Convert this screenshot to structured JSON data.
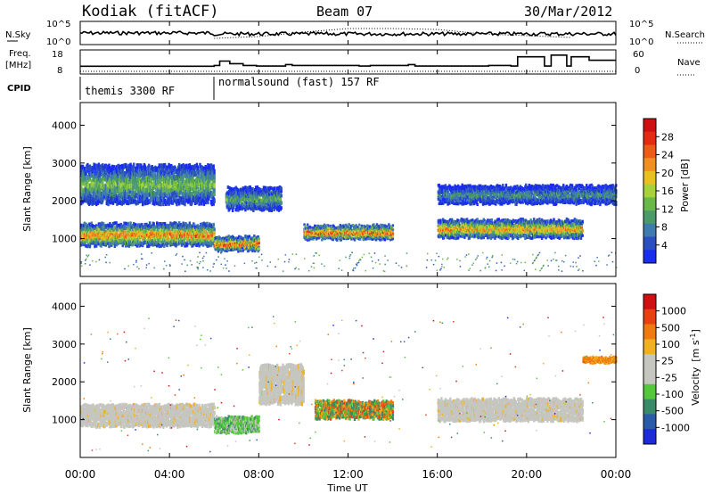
{
  "chart_data": {
    "type": "heatmap",
    "header": {
      "radar": "Kodiak (fitACF)",
      "beam": "Beam 07",
      "date": "30/Mar/2012"
    },
    "x": {
      "label": "Time UT",
      "range_hours": [
        0,
        24
      ],
      "tick_labels": [
        "00:00",
        "04:00",
        "08:00",
        "12:00",
        "16:00",
        "20:00",
        "00:00"
      ],
      "tick_hours": [
        0,
        4,
        8,
        12,
        16,
        20,
        24
      ]
    },
    "noise_panel": {
      "left_label": "N.Sky",
      "right_label": "N.Search",
      "left_ticks": [
        "10^5",
        "10^0"
      ],
      "right_ticks": [
        "10^5",
        "10^0"
      ],
      "search_trace_hours": [
        6,
        8,
        10,
        12,
        14,
        16,
        18,
        20,
        22
      ],
      "search_trace_level": [
        0.15,
        0.25,
        0.5,
        0.7,
        0.7,
        0.65,
        0.4,
        0.3,
        0.2
      ]
    },
    "freq_panel": {
      "left_label_1": "Freq.",
      "left_label_2": "[MHz]",
      "left_ticks": [
        "18",
        "8"
      ],
      "right_label": "Nave",
      "right_ticks": [
        "60",
        "0"
      ],
      "freq_steps_hours": [
        0,
        6,
        6.25,
        6.7,
        7.3,
        7.9,
        9.2,
        9.5,
        12.5,
        13,
        14.7,
        15,
        18.3,
        19.3,
        19.6,
        20.8,
        21.1,
        21.8,
        22,
        22.8,
        24
      ],
      "freq_steps_mhz": [
        10.5,
        11,
        13.5,
        12,
        11,
        10.6,
        11.5,
        11,
        10.6,
        11,
        11.5,
        10.6,
        11,
        10.6,
        16,
        10.6,
        17,
        10.6,
        16,
        14,
        14
      ]
    },
    "cpid": {
      "label": "CPID",
      "modes": [
        {
          "name": "themis 3300 RF",
          "start_hour": 0,
          "end_hour": 6
        },
        {
          "name": "normalsound (fast) 157 RF",
          "start_hour": 6,
          "end_hour": 24
        }
      ]
    },
    "power_panel": {
      "ylabel": "Slant Range [km]",
      "ylim": [
        0,
        4600
      ],
      "yticks": [
        1000,
        2000,
        3000,
        4000
      ],
      "colorbar_label": "Power [dB]",
      "colorbar_ticks": [
        "4",
        "8",
        "12",
        "16",
        "20",
        "24",
        "28"
      ],
      "colorbar_colors": [
        "#1a2cf0",
        "#2b4fbf",
        "#3f7ab0",
        "#4a9a6a",
        "#6ab84a",
        "#a8d23a",
        "#e8c020",
        "#f09020",
        "#ee5a18",
        "#e42a10",
        "#d01010"
      ],
      "bands": [
        {
          "start_hour": 0,
          "end_hour": 6,
          "center_km": 1150,
          "width_km": 500,
          "peak_db": 24
        },
        {
          "start_hour": 0,
          "end_hour": 6,
          "center_km": 2500,
          "width_km": 900,
          "peak_db": 14
        },
        {
          "start_hour": 6,
          "end_hour": 8,
          "center_km": 900,
          "width_km": 300,
          "peak_db": 26
        },
        {
          "start_hour": 6.5,
          "end_hour": 9,
          "center_km": 2100,
          "width_km": 500,
          "peak_db": 12
        },
        {
          "start_hour": 10,
          "end_hour": 14,
          "center_km": 1200,
          "width_km": 300,
          "peak_db": 26
        },
        {
          "start_hour": 16,
          "end_hour": 22.5,
          "center_km": 1300,
          "width_km": 400,
          "peak_db": 22
        },
        {
          "start_hour": 16,
          "end_hour": 24,
          "center_km": 2200,
          "width_km": 400,
          "peak_db": 10
        }
      ]
    },
    "velocity_panel": {
      "ylabel": "Slant Range [km]",
      "ylim": [
        0,
        4600
      ],
      "yticks": [
        1000,
        2000,
        3000,
        4000
      ],
      "colorbar_label_main": "Velocity",
      "colorbar_label_unit": "[m s",
      "colorbar_label_exp": "-1",
      "colorbar_label_close": "]",
      "colorbar_ticks": [
        "1000",
        "500",
        "100",
        "25",
        "-25",
        "-100",
        "-500",
        "-1000"
      ],
      "colorbar_colors": [
        "#1c2ad8",
        "#2a5aa8",
        "#3a8a6a",
        "#52c83a",
        "#c6c6c0",
        "#c6c6c0",
        "#f0b020",
        "#ee7a10",
        "#e84010",
        "#d01010"
      ],
      "bands": [
        {
          "start_hour": 0,
          "end_hour": 6,
          "center_km": 1150,
          "width_km": 500,
          "kind": "ground"
        },
        {
          "start_hour": 6,
          "end_hour": 8,
          "center_km": 900,
          "width_km": 350,
          "kind": "green"
        },
        {
          "start_hour": 8,
          "end_hour": 10,
          "center_km": 2000,
          "width_km": 900,
          "kind": "ground"
        },
        {
          "start_hour": 10.5,
          "end_hour": 14,
          "center_km": 1300,
          "width_km": 400,
          "kind": "mixed"
        },
        {
          "start_hour": 16,
          "end_hour": 22.5,
          "center_km": 1300,
          "width_km": 500,
          "kind": "ground"
        },
        {
          "start_hour": 22.5,
          "end_hour": 24,
          "center_km": 2600,
          "width_km": 100,
          "kind": "orange"
        }
      ]
    }
  }
}
